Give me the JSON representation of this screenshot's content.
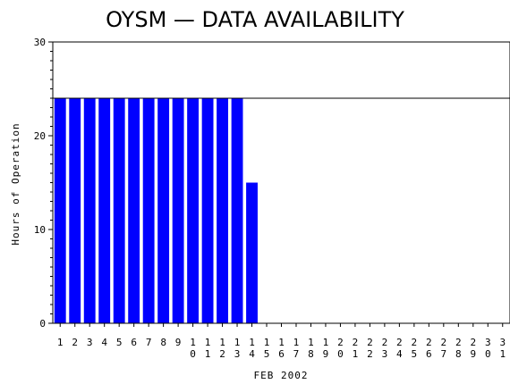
{
  "chart_data": {
    "type": "bar",
    "title": "OYSM  —  DATA AVAILABILITY",
    "xlabel": "FEB 2002",
    "ylabel": "Hours of Operation",
    "categories": [
      "1",
      "2",
      "3",
      "4",
      "5",
      "6",
      "7",
      "8",
      "9",
      "10",
      "11",
      "12",
      "13",
      "14",
      "15",
      "16",
      "17",
      "18",
      "19",
      "20",
      "21",
      "22",
      "23",
      "24",
      "25",
      "26",
      "27",
      "28",
      "29",
      "30",
      "31"
    ],
    "values": [
      24,
      24,
      24,
      24,
      24,
      24,
      24,
      24,
      24,
      24,
      24,
      24,
      24,
      15,
      0,
      0,
      0,
      0,
      0,
      0,
      0,
      0,
      0,
      0,
      0,
      0,
      0,
      0,
      0,
      0,
      0
    ],
    "ylim": [
      0,
      30
    ],
    "yticks": [
      0,
      10,
      20,
      30
    ],
    "reference_line": 24,
    "bar_color": "#0000ff",
    "grid": false,
    "legend": "none"
  }
}
